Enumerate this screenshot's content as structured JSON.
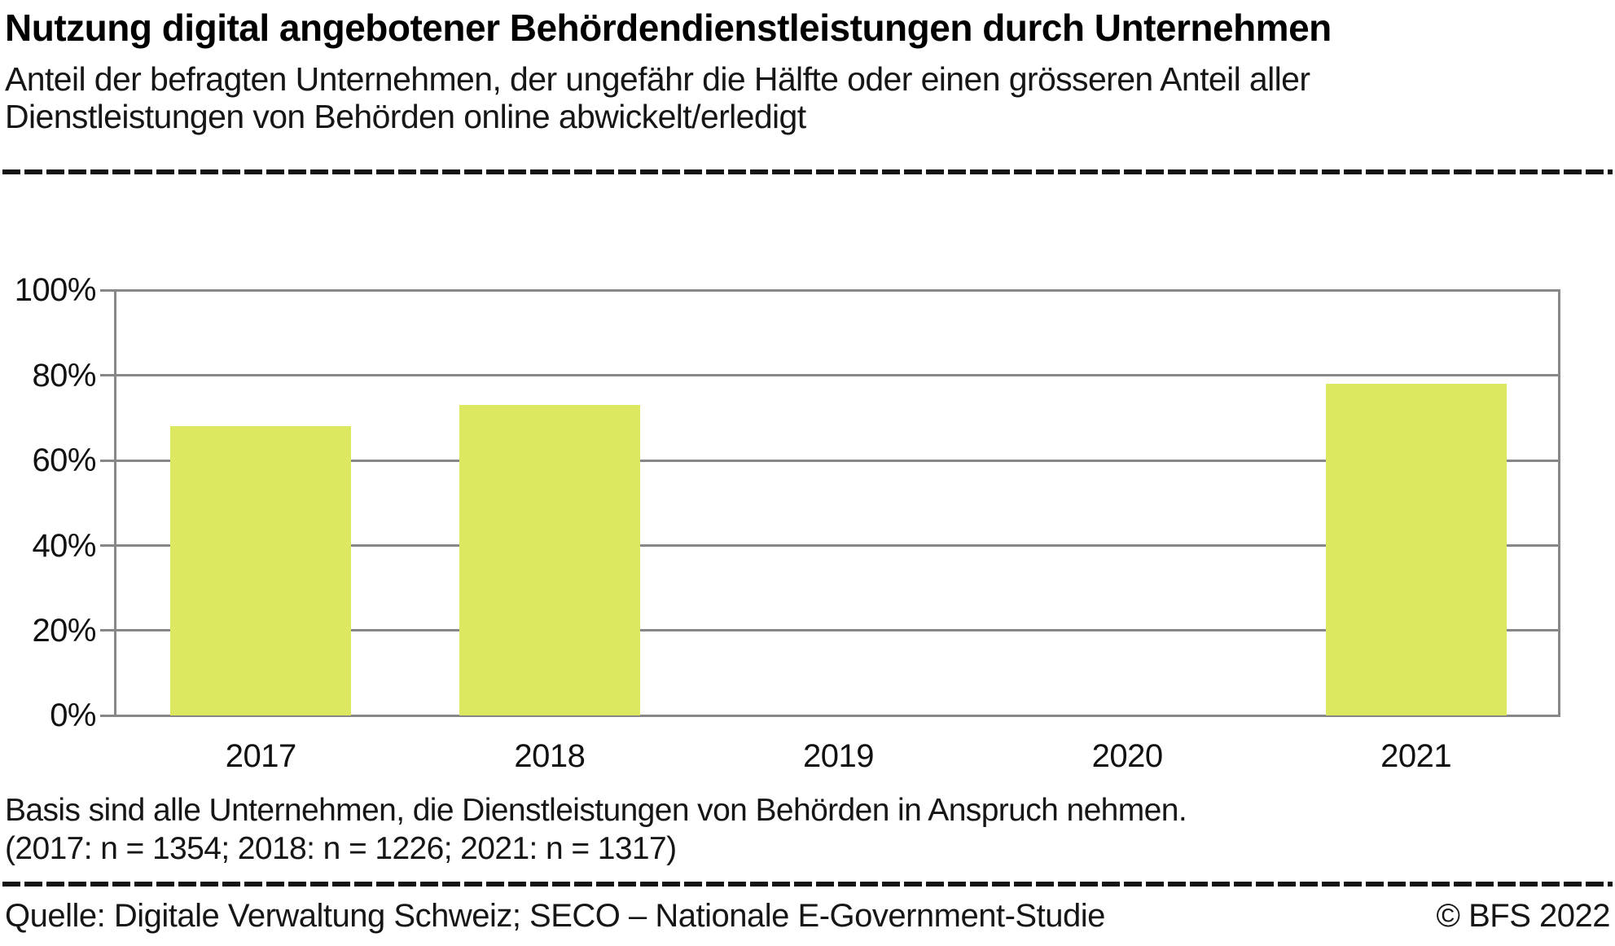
{
  "header": {
    "title": "Nutzung digital angebotener Behördendienstleistungen durch Unternehmen",
    "subtitle_line1": "Anteil der befragten Unternehmen, der ungefähr die Hälfte oder einen grösseren Anteil aller",
    "subtitle_line2": "Dienstleistungen von Behörden online abwickelt/erledigt"
  },
  "chart_data": {
    "type": "bar",
    "categories": [
      "2017",
      "2018",
      "2019",
      "2020",
      "2021"
    ],
    "values": [
      68,
      73,
      null,
      null,
      78
    ],
    "title": "Nutzung digital angebotener Behördendienstleistungen durch Unternehmen",
    "xlabel": "",
    "ylabel": "",
    "ylim": [
      0,
      100
    ],
    "yticks": [
      0,
      20,
      40,
      60,
      80,
      100
    ],
    "ytick_labels": [
      "0%",
      "20%",
      "40%",
      "60%",
      "80%",
      "100%"
    ],
    "grid": "horizontal",
    "legend_position": "none",
    "bar_color": "#dce85f",
    "grid_color": "#878787"
  },
  "footnote": {
    "line1": "Basis sind alle Unternehmen, die Dienstleistungen von Behörden in Anspruch nehmen.",
    "line2": "(2017: n = 1354; 2018: n = 1226; 2021: n = 1317)"
  },
  "footer": {
    "source": "Quelle: Digitale Verwaltung Schweiz; SECO – Nationale E-Government-Studie",
    "copyright": "© BFS 2022"
  }
}
